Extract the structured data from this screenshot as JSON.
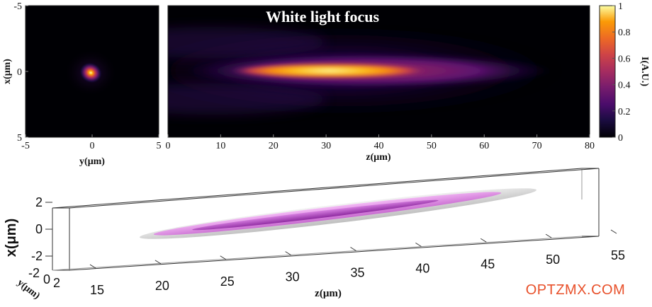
{
  "chart_data": [
    {
      "type": "heatmap",
      "panel": "transverse",
      "xlabel": "y(μm)",
      "ylabel": "x(μm)",
      "xlim": [
        -5,
        5
      ],
      "ylim": [
        -5,
        5
      ],
      "xticks": [
        "-5",
        "0",
        "5"
      ],
      "yticks": [
        "-5",
        "0",
        "5"
      ],
      "spot": {
        "x": -0.1,
        "y": 0.1,
        "peak": 1.0,
        "sigma_um": 0.9
      }
    },
    {
      "type": "heatmap",
      "panel": "longitudinal",
      "title": "White light focus",
      "xlabel": "z(μm)",
      "xlim": [
        0,
        80
      ],
      "ylim": [
        -5,
        5
      ],
      "xticks": [
        "0",
        "10",
        "20",
        "30",
        "40",
        "50",
        "60",
        "70",
        "80"
      ],
      "focus": {
        "z_start": 15,
        "z_peak": 28,
        "z_end": 65,
        "peak": 1.0
      },
      "colorbar": {
        "label": "I(A.U.)",
        "range": [
          0,
          1
        ],
        "ticks": [
          "1",
          "0.8",
          "0.6",
          "0.4",
          "0.2",
          "0"
        ],
        "colormap": "inferno"
      }
    },
    {
      "type": "isosurface-3d",
      "xlabel": "z(μm)",
      "ylabel": "x(μm)",
      "zlabel": "y(μm)",
      "zticks": [
        "15",
        "20",
        "25",
        "30",
        "35",
        "40",
        "45",
        "50",
        "55"
      ],
      "xticks": [
        "2",
        "0",
        "-2"
      ],
      "yticks": [
        "-2",
        "0",
        "2"
      ],
      "surface_colors": [
        "#c0c0c0",
        "#e07ee8",
        "#b044c0"
      ]
    }
  ],
  "watermark": "OPTZMX.COM"
}
